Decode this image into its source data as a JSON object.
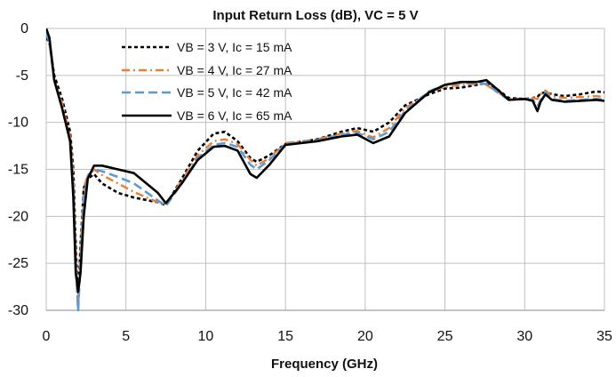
{
  "chart_data": {
    "type": "line",
    "title": "Input Return Loss (dB), VC = 5 V",
    "xlabel": "Frequency (GHz)",
    "ylabel": "",
    "xlim": [
      0,
      35
    ],
    "ylim": [
      -30,
      0
    ],
    "xticks": [
      0,
      5,
      10,
      15,
      20,
      25,
      30,
      35
    ],
    "yticks": [
      0,
      -5,
      -10,
      -15,
      -20,
      -25,
      -30
    ],
    "grid": true,
    "legend_position": "top-left",
    "series": [
      {
        "name": "VB = 3 V, Ic = 15 mA",
        "color": "#000000",
        "dash": "dotted",
        "x": [
          0,
          0.2,
          0.5,
          1.0,
          1.5,
          1.7,
          1.85,
          2.0,
          2.15,
          2.35,
          2.6,
          3.0,
          3.5,
          4.5,
          5.5,
          7.0,
          7.5,
          8.5,
          9.5,
          10.5,
          11.2,
          12.0,
          12.8,
          13.2,
          14.0,
          15.0,
          17.0,
          18.5,
          19.5,
          20.5,
          21.5,
          22.5,
          24.0,
          25.0,
          26.0,
          27.0,
          27.6,
          28.3,
          29.0,
          30.0,
          30.5,
          30.8,
          31.0,
          31.3,
          31.7,
          32.5,
          33.5,
          34.5,
          35.0
        ],
        "y": [
          -1.0,
          -1.5,
          -5.0,
          -7.5,
          -11.0,
          -15.0,
          -23.0,
          -29.0,
          -23.0,
          -17.0,
          -16.0,
          -15.5,
          -16.5,
          -17.5,
          -18.0,
          -18.5,
          -18.8,
          -16.0,
          -13.0,
          -11.2,
          -11.0,
          -12.0,
          -13.8,
          -14.2,
          -13.5,
          -12.3,
          -11.8,
          -11.0,
          -10.6,
          -11.0,
          -10.0,
          -8.2,
          -7.0,
          -6.4,
          -6.3,
          -6.0,
          -5.8,
          -6.5,
          -7.4,
          -7.5,
          -7.4,
          -7.3,
          -6.9,
          -6.8,
          -7.0,
          -7.2,
          -7.0,
          -6.7,
          -6.8
        ]
      },
      {
        "name": "VB = 4 V, Ic = 27 mA",
        "color": "#ED7D31",
        "dash": "dashdot",
        "x": [
          0,
          0.2,
          0.5,
          1.0,
          1.5,
          1.7,
          1.85,
          2.0,
          2.15,
          2.35,
          2.6,
          3.0,
          3.5,
          4.5,
          5.5,
          7.0,
          7.5,
          8.5,
          9.5,
          10.5,
          11.2,
          12.0,
          12.8,
          13.2,
          14.0,
          15.0,
          17.0,
          18.5,
          19.5,
          20.5,
          21.5,
          22.5,
          24.0,
          25.0,
          26.0,
          27.0,
          27.6,
          28.3,
          29.0,
          30.0,
          30.5,
          30.8,
          31.0,
          31.3,
          31.7,
          32.5,
          33.5,
          34.5,
          35.0
        ],
        "y": [
          -0.5,
          -1.5,
          -5.5,
          -8.0,
          -11.5,
          -16.0,
          -24.0,
          -30.0,
          -24.0,
          -17.0,
          -15.6,
          -15.0,
          -15.6,
          -16.5,
          -17.4,
          -18.5,
          -18.7,
          -16.2,
          -13.5,
          -12.0,
          -11.8,
          -12.3,
          -14.0,
          -14.6,
          -13.8,
          -12.2,
          -11.8,
          -11.2,
          -10.9,
          -11.6,
          -10.6,
          -8.5,
          -6.8,
          -6.2,
          -6.0,
          -5.9,
          -6.0,
          -6.8,
          -7.5,
          -7.5,
          -7.4,
          -7.5,
          -7.0,
          -6.6,
          -7.2,
          -7.4,
          -7.3,
          -7.2,
          -7.3
        ]
      },
      {
        "name": "VB = 5 V, Ic =  42 mA",
        "color": "#5B9BD5",
        "dash": "dashed",
        "x": [
          0,
          0.2,
          0.5,
          1.0,
          1.5,
          1.7,
          1.85,
          2.0,
          2.15,
          2.35,
          2.6,
          3.0,
          3.5,
          4.5,
          5.5,
          7.0,
          7.5,
          8.5,
          9.5,
          10.5,
          11.2,
          12.0,
          12.8,
          13.2,
          14.0,
          15.0,
          17.0,
          18.5,
          19.5,
          20.5,
          21.5,
          22.5,
          24.0,
          25.0,
          26.0,
          27.0,
          27.6,
          28.3,
          29.0,
          30.0,
          30.5,
          30.8,
          31.0,
          31.3,
          31.7,
          32.5,
          33.5,
          34.5,
          35.0
        ],
        "y": [
          -0.5,
          -1.5,
          -5.5,
          -8.5,
          -12.0,
          -17.0,
          -25.0,
          -30.0,
          -25.0,
          -18.0,
          -15.7,
          -15.0,
          -15.2,
          -15.8,
          -16.5,
          -18.3,
          -18.9,
          -16.5,
          -13.8,
          -12.4,
          -12.2,
          -12.6,
          -14.5,
          -15.0,
          -14.0,
          -12.3,
          -11.9,
          -11.3,
          -11.1,
          -11.8,
          -11.0,
          -8.8,
          -6.7,
          -6.0,
          -5.8,
          -5.8,
          -5.9,
          -6.8,
          -7.6,
          -7.5,
          -7.6,
          -8.3,
          -7.6,
          -6.8,
          -7.5,
          -7.7,
          -7.6,
          -7.5,
          -7.6
        ]
      },
      {
        "name": "VB = 6 V, Ic = 65 mA",
        "color": "#000000",
        "dash": "solid",
        "x": [
          0,
          0.2,
          0.5,
          1.0,
          1.5,
          1.7,
          1.85,
          2.0,
          2.15,
          2.35,
          2.6,
          3.0,
          3.5,
          4.5,
          5.5,
          7.0,
          7.5,
          8.5,
          9.5,
          10.5,
          11.2,
          12.0,
          12.8,
          13.2,
          14.0,
          15.0,
          17.0,
          18.5,
          19.5,
          20.5,
          21.5,
          22.5,
          24.0,
          25.0,
          26.0,
          27.0,
          27.6,
          28.3,
          29.0,
          30.0,
          30.5,
          30.8,
          31.0,
          31.3,
          31.7,
          32.5,
          33.5,
          34.5,
          35.0
        ],
        "y": [
          0,
          -1.0,
          -5.5,
          -8.5,
          -12.0,
          -18.0,
          -26.0,
          -28.0,
          -26.0,
          -20.0,
          -16.0,
          -14.6,
          -14.6,
          -15.0,
          -15.4,
          -17.5,
          -18.6,
          -16.5,
          -14.0,
          -12.6,
          -12.5,
          -13.0,
          -15.5,
          -15.9,
          -14.5,
          -12.4,
          -12.0,
          -11.5,
          -11.3,
          -12.2,
          -11.5,
          -9.0,
          -6.8,
          -6.0,
          -5.7,
          -5.7,
          -5.5,
          -6.5,
          -7.6,
          -7.5,
          -7.7,
          -8.8,
          -7.8,
          -7.0,
          -7.6,
          -7.8,
          -7.7,
          -7.6,
          -7.7
        ]
      }
    ]
  }
}
